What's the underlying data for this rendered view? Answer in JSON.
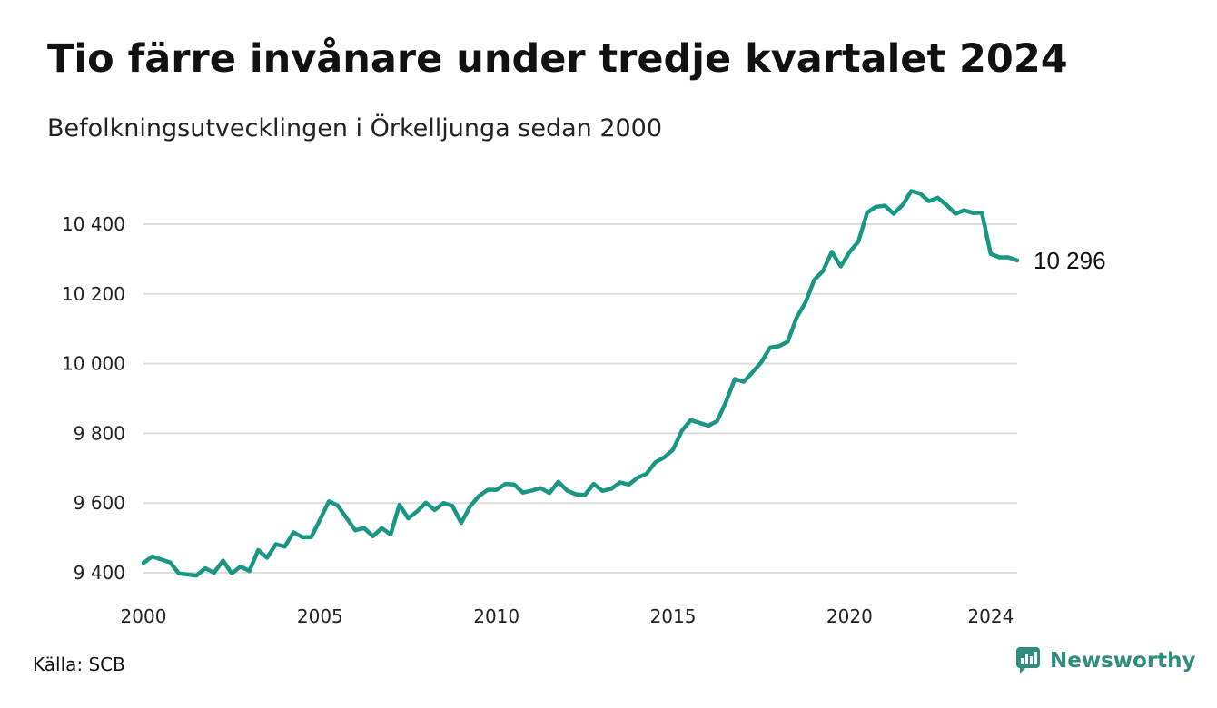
{
  "chart_data": {
    "type": "line",
    "title": "Tio färre invånare under tredje kvartalet 2024",
    "subtitle": "Befolkningsutvecklingen i Örkelljunga sedan 2000",
    "xlabel": "",
    "ylabel": "",
    "x_ticks": [
      "2000",
      "2005",
      "2010",
      "2015",
      "2020",
      "2024"
    ],
    "y_ticks": [
      "9 400",
      "9 600",
      "9 800",
      "10 000",
      "10 200",
      "10 400"
    ],
    "ylim": [
      9400,
      10500
    ],
    "xlim": [
      2000.0,
      2024.75
    ],
    "grid": "horizontal",
    "color": "#1a9685",
    "end_label": "10 296",
    "series": [
      {
        "x": [
          2000.0,
          2000.25,
          2000.5,
          2000.75,
          2001.0,
          2001.25,
          2001.5,
          2001.75,
          2002.0,
          2002.25,
          2002.5,
          2002.75,
          2003.0,
          2003.25,
          2003.5,
          2003.75,
          2004.0,
          2004.25,
          2004.5,
          2004.75,
          2005.0,
          2005.25,
          2005.5,
          2005.75,
          2006.0,
          2006.25,
          2006.5,
          2006.75,
          2007.0,
          2007.25,
          2007.5,
          2007.75,
          2008.0,
          2008.25,
          2008.5,
          2008.75,
          2009.0,
          2009.25,
          2009.5,
          2009.75,
          2010.0,
          2010.25,
          2010.5,
          2010.75,
          2011.0,
          2011.25,
          2011.5,
          2011.75,
          2012.0,
          2012.25,
          2012.5,
          2012.75,
          2013.0,
          2013.25,
          2013.5,
          2013.75,
          2014.0,
          2014.25,
          2014.5,
          2014.75,
          2015.0,
          2015.25,
          2015.5,
          2015.75,
          2016.0,
          2016.25,
          2016.5,
          2016.75,
          2017.0,
          2017.25,
          2017.5,
          2017.75,
          2018.0,
          2018.25,
          2018.5,
          2018.75,
          2019.0,
          2019.25,
          2019.5,
          2019.75,
          2020.0,
          2020.25,
          2020.5,
          2020.75,
          2021.0,
          2021.25,
          2021.5,
          2021.75,
          2022.0,
          2022.25,
          2022.5,
          2022.75,
          2023.0,
          2023.25,
          2023.5,
          2023.75,
          2024.0,
          2024.25,
          2024.5,
          2024.75
        ],
        "values": [
          9428,
          9447,
          9438,
          9430,
          9398,
          9395,
          9392,
          9413,
          9400,
          9435,
          9398,
          9418,
          9405,
          9465,
          9443,
          9482,
          9475,
          9516,
          9502,
          9502,
          9552,
          9605,
          9593,
          9557,
          9522,
          9528,
          9505,
          9528,
          9510,
          9595,
          9556,
          9576,
          9601,
          9580,
          9600,
          9592,
          9543,
          9590,
          9620,
          9638,
          9638,
          9655,
          9653,
          9630,
          9636,
          9643,
          9629,
          9661,
          9636,
          9625,
          9623,
          9655,
          9635,
          9641,
          9659,
          9653,
          9673,
          9684,
          9717,
          9731,
          9753,
          9807,
          9838,
          9830,
          9822,
          9835,
          9890,
          9956,
          9948,
          9975,
          10004,
          10046,
          10050,
          10063,
          10132,
          10175,
          10240,
          10266,
          10321,
          10279,
          10320,
          10350,
          10433,
          10450,
          10453,
          10430,
          10455,
          10495,
          10488,
          10466,
          10476,
          10455,
          10430,
          10440,
          10432,
          10433,
          10315,
          10305,
          10305,
          10296
        ]
      }
    ]
  },
  "footer": {
    "source": "Källa: SCB",
    "brand": "Newsworthy"
  },
  "icons": {
    "brand_logo": "newsworthy-logo-icon"
  }
}
